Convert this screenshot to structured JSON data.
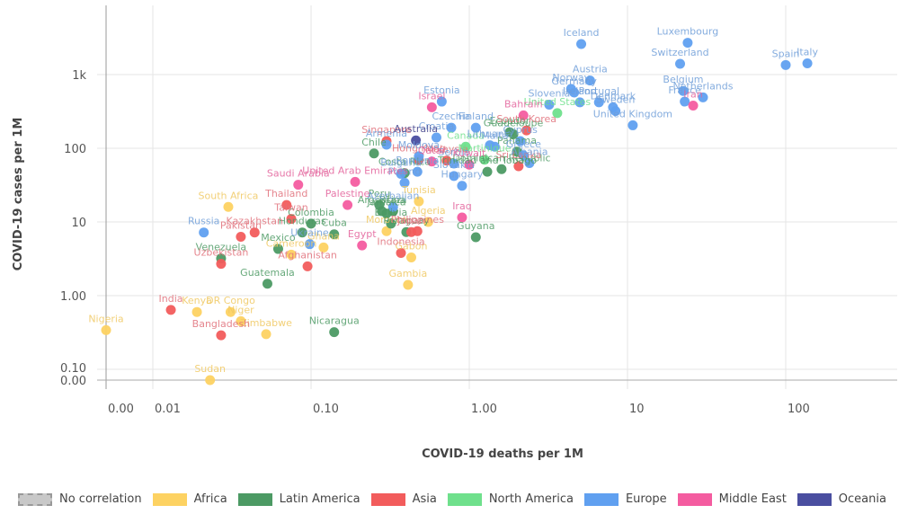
{
  "chart_data": {
    "type": "scatter",
    "title": "",
    "xlabel": "COVID-19 deaths per 1M",
    "ylabel": "COVID-19 cases per 1M",
    "xscale": "symlog",
    "yscale": "symlog",
    "xlim": [
      0,
      400
    ],
    "ylim": [
      0,
      4000
    ],
    "grid": true,
    "x_ticks": [
      {
        "v": 0,
        "label": "0.00"
      },
      {
        "v": 0.01,
        "label": "0.01"
      },
      {
        "v": 0.1,
        "label": "0.10"
      },
      {
        "v": 1,
        "label": "1.00"
      },
      {
        "v": 10,
        "label": "10"
      },
      {
        "v": 100,
        "label": "100"
      }
    ],
    "y_ticks": [
      {
        "v": 0,
        "label": "0.00"
      },
      {
        "v": 0.1,
        "label": "0.10"
      },
      {
        "v": 1,
        "label": "1.00"
      },
      {
        "v": 10,
        "label": "10"
      },
      {
        "v": 100,
        "label": "100"
      },
      {
        "v": 1000,
        "label": "1k"
      }
    ],
    "legend_position": "bottom",
    "legend": [
      {
        "name": "No correlation",
        "color": "#c8c8c8",
        "dashed": true
      },
      {
        "name": "Africa",
        "color": "#fdd262"
      },
      {
        "name": "Latin America",
        "color": "#4c9a64"
      },
      {
        "name": "Asia",
        "color": "#f25c5c"
      },
      {
        "name": "North America",
        "color": "#6fe08c"
      },
      {
        "name": "Europe",
        "color": "#60a0f0"
      },
      {
        "name": "Middle East",
        "color": "#f45ca0"
      },
      {
        "name": "Oceania",
        "color": "#4a4ea0"
      }
    ],
    "series": [
      {
        "name": "Africa",
        "color": "#fdd262",
        "label_color": "#f0c860",
        "points": [
          {
            "label": "Nigeria",
            "x": 0,
            "y": 0.34
          },
          {
            "label": "Sudan",
            "x": 0.023,
            "y": 0
          },
          {
            "label": "Kenya",
            "x": 0.019,
            "y": 0.6
          },
          {
            "label": "DR Congo",
            "x": 0.031,
            "y": 0.6
          },
          {
            "label": "Niger",
            "x": 0.036,
            "y": 0.45
          },
          {
            "label": "Zimbabwe",
            "x": 0.052,
            "y": 0.3
          },
          {
            "label": "South Africa",
            "x": 0.03,
            "y": 16
          },
          {
            "label": "Cameroon",
            "x": 0.075,
            "y": 3.6
          },
          {
            "label": "Ghana",
            "x": 0.12,
            "y": 4.5
          },
          {
            "label": "Morocco",
            "x": 0.3,
            "y": 7.5
          },
          {
            "label": "Algeria",
            "x": 0.55,
            "y": 10
          },
          {
            "label": "Tunisia",
            "x": 0.48,
            "y": 19
          },
          {
            "label": "Gabon",
            "x": 0.43,
            "y": 3.3
          },
          {
            "label": "Gambia",
            "x": 0.41,
            "y": 1.4
          }
        ]
      },
      {
        "name": "Latin America",
        "color": "#4c9a64",
        "label_color": "#4c9a64",
        "points": [
          {
            "label": "Venezuela",
            "x": 0.027,
            "y": 3.2
          },
          {
            "label": "Guatemala",
            "x": 0.053,
            "y": 1.45
          },
          {
            "label": "Mexico",
            "x": 0.062,
            "y": 4.3
          },
          {
            "label": "Colombia",
            "x": 0.1,
            "y": 9.5
          },
          {
            "label": "Honduras",
            "x": 0.088,
            "y": 7.2
          },
          {
            "label": "Cuba",
            "x": 0.14,
            "y": 6.8
          },
          {
            "label": "Nicaragua",
            "x": 0.14,
            "y": 0.32
          },
          {
            "label": "Peru",
            "x": 0.27,
            "y": 17
          },
          {
            "label": "Argentina",
            "x": 0.28,
            "y": 14
          },
          {
            "label": "Brazil",
            "x": 0.33,
            "y": 14
          },
          {
            "label": "Jamaica",
            "x": 0.3,
            "y": 13
          },
          {
            "label": "Paraguay",
            "x": 0.4,
            "y": 7.3
          },
          {
            "label": "Bolivia",
            "x": 0.32,
            "y": 9.5
          },
          {
            "label": "Chile",
            "x": 0.25,
            "y": 85
          },
          {
            "label": "Costa Rica",
            "x": 0.39,
            "y": 46
          },
          {
            "label": "Guyana",
            "x": 1.1,
            "y": 6.2
          },
          {
            "label": "Guadeloupe",
            "x": 1.9,
            "y": 155
          },
          {
            "label": "Ecuador",
            "x": 1.8,
            "y": 165
          },
          {
            "label": "Dominican Republic",
            "x": 1.6,
            "y": 52
          },
          {
            "label": "Trinidad and Tobago",
            "x": 1.3,
            "y": 48
          },
          {
            "label": "Panama",
            "x": 2.0,
            "y": 90
          }
        ]
      },
      {
        "name": "Asia",
        "color": "#f25c5c",
        "label_color": "#e0707a",
        "points": [
          {
            "label": "India",
            "x": 0.013,
            "y": 0.64
          },
          {
            "label": "Bangladesh",
            "x": 0.027,
            "y": 0.29
          },
          {
            "label": "Uzbekistan",
            "x": 0.027,
            "y": 2.7
          },
          {
            "label": "Pakistan",
            "x": 0.036,
            "y": 6.3
          },
          {
            "label": "Kazakhstan",
            "x": 0.044,
            "y": 7.2
          },
          {
            "label": "Thailand",
            "x": 0.07,
            "y": 17
          },
          {
            "label": "Taiwan",
            "x": 0.075,
            "y": 11
          },
          {
            "label": "Afghanistan",
            "x": 0.095,
            "y": 2.5
          },
          {
            "label": "Indonesia",
            "x": 0.37,
            "y": 3.8
          },
          {
            "label": "Japan",
            "x": 0.43,
            "y": 7.3
          },
          {
            "label": "Philippines",
            "x": 0.47,
            "y": 7.5
          },
          {
            "label": "Singapore",
            "x": 0.3,
            "y": 125
          },
          {
            "label": "Hong Kong",
            "x": 0.48,
            "y": 70
          },
          {
            "label": "Malaysia",
            "x": 0.72,
            "y": 68
          },
          {
            "label": "South Korea",
            "x": 2.3,
            "y": 175
          },
          {
            "label": "Sri Lanka",
            "x": 2.05,
            "y": 57
          }
        ]
      },
      {
        "name": "North America",
        "color": "#6fe08c",
        "label_color": "#6fe08c",
        "points": [
          {
            "label": "Canada",
            "x": 0.95,
            "y": 105
          },
          {
            "label": "United States",
            "x": 3.6,
            "y": 300
          },
          {
            "label": "Martinique",
            "x": 1.25,
            "y": 70
          }
        ]
      },
      {
        "name": "Europe",
        "color": "#60a0f0",
        "label_color": "#6e9ed8",
        "points": [
          {
            "label": "Russia",
            "x": 0.021,
            "y": 7.2
          },
          {
            "label": "Ukraine",
            "x": 0.098,
            "y": 5
          },
          {
            "label": "Azerbaijan",
            "x": 0.33,
            "y": 16
          },
          {
            "label": "Armenia",
            "x": 0.3,
            "y": 112
          },
          {
            "label": "Moldova",
            "x": 0.48,
            "y": 78
          },
          {
            "label": "Bulgaria",
            "x": 0.37,
            "y": 45
          },
          {
            "label": "Romania",
            "x": 0.47,
            "y": 48
          },
          {
            "label": "Poland",
            "x": 0.39,
            "y": 34
          },
          {
            "label": "Croatia",
            "x": 0.62,
            "y": 140
          },
          {
            "label": "Estonia",
            "x": 0.67,
            "y": 430
          },
          {
            "label": "Czechia",
            "x": 0.77,
            "y": 190
          },
          {
            "label": "Finland",
            "x": 1.1,
            "y": 190
          },
          {
            "label": "Lithuania",
            "x": 1.35,
            "y": 110
          },
          {
            "label": "Cyprus",
            "x": 2.1,
            "y": 125
          },
          {
            "label": "Serbia",
            "x": 0.8,
            "y": 62
          },
          {
            "label": "Hungary",
            "x": 0.9,
            "y": 31
          },
          {
            "label": "Slovakia",
            "x": 0.8,
            "y": 42
          },
          {
            "label": "Albania",
            "x": 2.4,
            "y": 63
          },
          {
            "label": "Greece",
            "x": 2.2,
            "y": 80
          },
          {
            "label": "Malta",
            "x": 1.45,
            "y": 105
          },
          {
            "label": "Iceland",
            "x": 5.1,
            "y": 2600
          },
          {
            "label": "Austria",
            "x": 5.8,
            "y": 830
          },
          {
            "label": "Norway",
            "x": 4.4,
            "y": 640
          },
          {
            "label": "Germany",
            "x": 4.6,
            "y": 570
          },
          {
            "label": "Ireland",
            "x": 5.0,
            "y": 420
          },
          {
            "label": "Slovenia",
            "x": 3.2,
            "y": 390
          },
          {
            "label": "Portugal",
            "x": 6.6,
            "y": 420
          },
          {
            "label": "Denmark",
            "x": 8.1,
            "y": 360
          },
          {
            "label": "Sweden",
            "x": 8.4,
            "y": 320
          },
          {
            "label": "United Kingdom",
            "x": 10.8,
            "y": 205
          },
          {
            "label": "Luxembourg",
            "x": 24,
            "y": 2700
          },
          {
            "label": "Switzerland",
            "x": 21.5,
            "y": 1400
          },
          {
            "label": "Belgium",
            "x": 22.5,
            "y": 600
          },
          {
            "label": "France",
            "x": 23,
            "y": 430
          },
          {
            "label": "Netherlands",
            "x": 30,
            "y": 490
          },
          {
            "label": "Spain",
            "x": 100,
            "y": 1350
          },
          {
            "label": "Italy",
            "x": 137,
            "y": 1420
          }
        ]
      },
      {
        "name": "Middle East",
        "color": "#f45ca0",
        "label_color": "#e3609a",
        "points": [
          {
            "label": "Saudi Arabia",
            "x": 0.083,
            "y": 32
          },
          {
            "label": "United Arab Emirates",
            "x": 0.19,
            "y": 35
          },
          {
            "label": "Palestine",
            "x": 0.17,
            "y": 17
          },
          {
            "label": "Egypt",
            "x": 0.21,
            "y": 4.8
          },
          {
            "label": "Israel",
            "x": 0.58,
            "y": 360
          },
          {
            "label": "Bahrain",
            "x": 2.2,
            "y": 280
          },
          {
            "label": "Qatar",
            "x": 0.58,
            "y": 66
          },
          {
            "label": "Kuwait",
            "x": 1.0,
            "y": 60
          },
          {
            "label": "Iraq",
            "x": 0.9,
            "y": 11.5
          },
          {
            "label": "Iran",
            "x": 26,
            "y": 380
          }
        ]
      },
      {
        "name": "Oceania",
        "color": "#4a4ea0",
        "label_color": "#3f3f8a",
        "points": [
          {
            "label": "Australia",
            "x": 0.46,
            "y": 128
          }
        ]
      }
    ]
  }
}
